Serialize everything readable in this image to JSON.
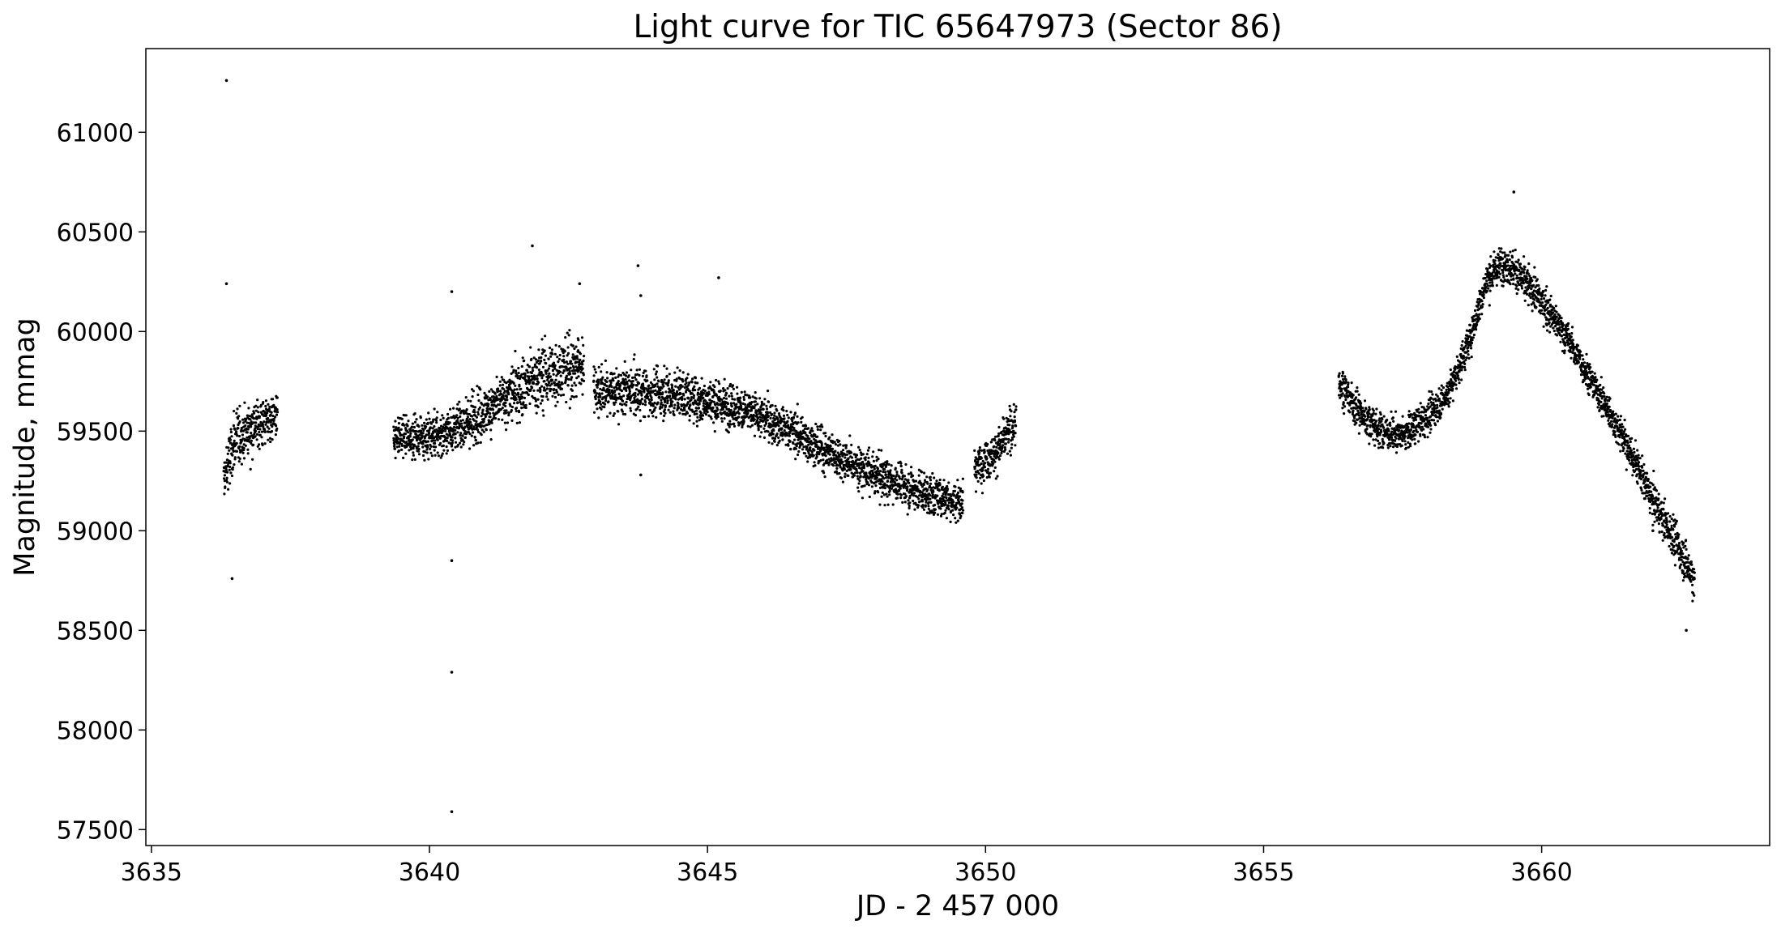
{
  "chart_data": {
    "type": "scatter",
    "title": "Light curve for TIC 65647973 (Sector 86)",
    "xlabel": "JD - 2 457 000",
    "ylabel": "Magnitude, mmag",
    "xlim": [
      3634.9,
      3664.1
    ],
    "ylim": [
      57420,
      61420
    ],
    "y_inverted": false,
    "xticks": [
      3635,
      3640,
      3645,
      3650,
      3655,
      3660
    ],
    "yticks": [
      57500,
      58000,
      58500,
      59000,
      59500,
      60000,
      60500,
      61000
    ],
    "grid": false,
    "legend": "none",
    "marker_color": "#000000",
    "series": [
      {
        "trend": [
          [
            3636.3,
            59250
          ],
          [
            3636.5,
            59450
          ],
          [
            3636.8,
            59520
          ],
          [
            3637.27,
            59580
          ],
          [
            3639.35,
            59470
          ],
          [
            3640.2,
            59480
          ],
          [
            3640.8,
            59560
          ],
          [
            3641.3,
            59650
          ],
          [
            3641.8,
            59750
          ],
          [
            3642.3,
            59800
          ],
          [
            3642.75,
            59830
          ],
          [
            3643.0,
            59700
          ],
          [
            3643.5,
            59700
          ],
          [
            3644.0,
            59690
          ],
          [
            3644.5,
            59680
          ],
          [
            3645.0,
            59650
          ],
          [
            3645.5,
            59620
          ],
          [
            3646.0,
            59570
          ],
          [
            3646.5,
            59500
          ],
          [
            3647.0,
            59420
          ],
          [
            3647.5,
            59350
          ],
          [
            3648.0,
            59280
          ],
          [
            3648.5,
            59230
          ],
          [
            3649.0,
            59180
          ],
          [
            3649.6,
            59150
          ],
          [
            3649.8,
            59320
          ],
          [
            3650.2,
            59400
          ],
          [
            3650.55,
            59550
          ],
          [
            3656.35,
            59750
          ],
          [
            3656.7,
            59600
          ],
          [
            3657.1,
            59500
          ],
          [
            3657.5,
            59480
          ],
          [
            3657.9,
            59560
          ],
          [
            3658.3,
            59680
          ],
          [
            3658.7,
            59950
          ],
          [
            3659.0,
            60250
          ],
          [
            3659.3,
            60350
          ],
          [
            3659.6,
            60280
          ],
          [
            3660.0,
            60150
          ],
          [
            3660.5,
            59950
          ],
          [
            3661.0,
            59700
          ],
          [
            3661.5,
            59450
          ],
          [
            3662.0,
            59150
          ],
          [
            3662.4,
            58950
          ],
          [
            3662.75,
            58750
          ]
        ],
        "scatter": [
          [
            3636.3,
            150
          ],
          [
            3637.27,
            120
          ],
          [
            3639.35,
            90
          ],
          [
            3640.5,
            110
          ],
          [
            3641.8,
            160
          ],
          [
            3642.75,
            150
          ],
          [
            3643.0,
            120
          ],
          [
            3645.0,
            110
          ],
          [
            3647.0,
            100
          ],
          [
            3649.6,
            100
          ],
          [
            3650.55,
            100
          ],
          [
            3656.35,
            90
          ],
          [
            3658.0,
            80
          ],
          [
            3659.3,
            90
          ],
          [
            3661.0,
            80
          ],
          [
            3662.75,
            100
          ]
        ],
        "gaps": [
          [
            3637.27,
            3639.35
          ],
          [
            3642.78,
            3642.95
          ],
          [
            3649.6,
            3649.8
          ],
          [
            3650.55,
            3656.35
          ]
        ],
        "outliers": [
          [
            3636.35,
            61260
          ],
          [
            3636.35,
            60240
          ],
          [
            3636.45,
            58760
          ],
          [
            3640.4,
            60200
          ],
          [
            3640.4,
            58850
          ],
          [
            3640.4,
            58290
          ],
          [
            3640.4,
            57590
          ],
          [
            3641.85,
            60430
          ],
          [
            3643.75,
            60330
          ],
          [
            3643.8,
            60180
          ],
          [
            3645.2,
            60270
          ],
          [
            3642.7,
            60240
          ],
          [
            3643.8,
            59280
          ],
          [
            3659.5,
            60700
          ],
          [
            3662.6,
            58500
          ],
          [
            3662.0,
            59000
          ]
        ]
      }
    ]
  }
}
